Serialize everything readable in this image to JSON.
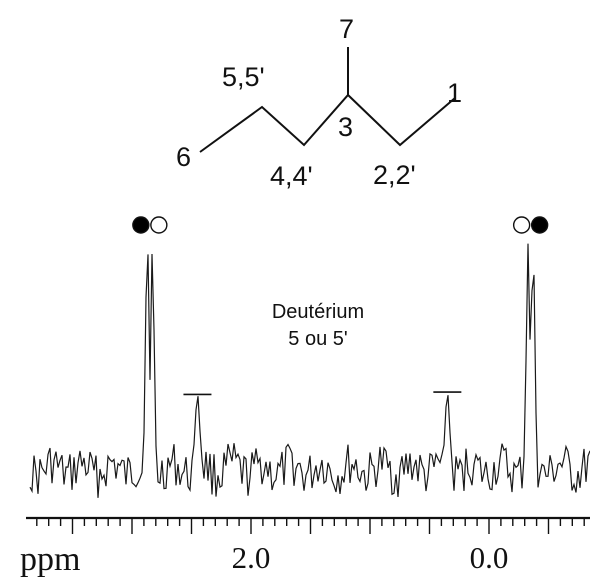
{
  "molecule": {
    "labels": {
      "c1": "1",
      "c22": "2,2'",
      "c3": "3",
      "c44": "4,4'",
      "c55": "5,5'",
      "c6": "6",
      "c7": "7"
    }
  },
  "annotation": {
    "line1": "Deutérium",
    "line2": "5 ou 5'"
  },
  "chart_data": {
    "type": "line",
    "xlabel": "",
    "unit_label": "ppm",
    "xlim": [
      3.6,
      -1.2
    ],
    "x_reversed": true,
    "tick_labels": [
      {
        "value": 2.0,
        "label": "2.0"
      },
      {
        "value": 0.0,
        "label": "0.0"
      }
    ],
    "peaks": [
      {
        "x": 2.85,
        "rel_height": 1.0,
        "shape": "doublet"
      },
      {
        "x": 2.45,
        "rel_height": 0.32,
        "shape": "singlet"
      },
      {
        "x": 0.35,
        "rel_height": 0.33,
        "shape": "singlet"
      },
      {
        "x": -0.35,
        "rel_height": 1.0,
        "shape": "doublet"
      }
    ],
    "markers": [
      {
        "x": 2.85,
        "order": [
          "filled",
          "open"
        ]
      },
      {
        "x": -0.35,
        "order": [
          "open",
          "filled"
        ]
      }
    ],
    "baseline_noise": true,
    "colors": {
      "line": "#1a1a1a",
      "marker_fill": "#000000",
      "marker_open": "#ffffff"
    }
  }
}
